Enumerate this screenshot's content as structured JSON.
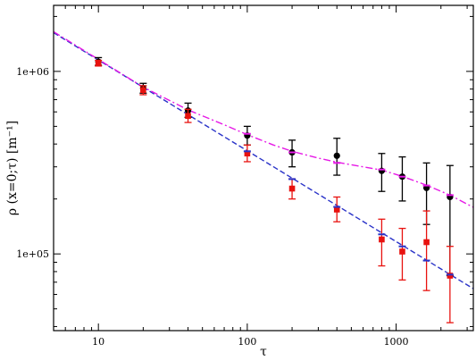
{
  "chart_data": {
    "type": "scatter",
    "xscale": "log",
    "yscale": "log",
    "xlim": [
      5,
      3300
    ],
    "ylim": [
      38000,
      2300000
    ],
    "grid": false,
    "legend": "none",
    "xlabel": "τ",
    "ylabel": "ρ (x=0;τ) [m⁻¹]",
    "x_ticks": [
      {
        "value": 10,
        "label": "10"
      },
      {
        "value": 100,
        "label": "100"
      },
      {
        "value": 1000,
        "label": "1000"
      }
    ],
    "y_ticks": [
      {
        "value": 100000,
        "label": "1e+05"
      },
      {
        "value": 1000000,
        "label": "1e+06"
      }
    ],
    "series": [
      {
        "marker": "circle",
        "color": "#000000",
        "points": [
          {
            "x": 10,
            "y": 1130000,
            "lo": 1080000,
            "hi": 1190000
          },
          {
            "x": 20,
            "y": 810000,
            "lo": 760000,
            "hi": 860000
          },
          {
            "x": 40,
            "y": 610000,
            "lo": 560000,
            "hi": 670000
          },
          {
            "x": 100,
            "y": 445000,
            "lo": 395000,
            "hi": 500000
          },
          {
            "x": 200,
            "y": 360000,
            "lo": 300000,
            "hi": 420000
          },
          {
            "x": 400,
            "y": 345000,
            "lo": 270000,
            "hi": 430000
          },
          {
            "x": 800,
            "y": 285000,
            "lo": 220000,
            "hi": 355000
          },
          {
            "x": 1100,
            "y": 265000,
            "lo": 195000,
            "hi": 340000
          },
          {
            "x": 1600,
            "y": 230000,
            "lo": 145000,
            "hi": 315000
          },
          {
            "x": 2300,
            "y": 205000,
            "lo": 76000,
            "hi": 305000
          }
        ]
      },
      {
        "marker": "square",
        "color": "#e8120f",
        "points": [
          {
            "x": 10,
            "y": 1110000,
            "lo": 1070000,
            "hi": 1150000
          },
          {
            "x": 20,
            "y": 790000,
            "lo": 745000,
            "hi": 835000
          },
          {
            "x": 40,
            "y": 570000,
            "lo": 525000,
            "hi": 620000
          },
          {
            "x": 100,
            "y": 355000,
            "lo": 320000,
            "hi": 395000
          },
          {
            "x": 200,
            "y": 228000,
            "lo": 200000,
            "hi": 258000
          },
          {
            "x": 400,
            "y": 175000,
            "lo": 150000,
            "hi": 205000
          },
          {
            "x": 800,
            "y": 120000,
            "lo": 86000,
            "hi": 155000
          },
          {
            "x": 1100,
            "y": 103000,
            "lo": 72000,
            "hi": 138000
          },
          {
            "x": 1600,
            "y": 116000,
            "lo": 63000,
            "hi": 172000
          },
          {
            "x": 2300,
            "y": 76000,
            "lo": 42000,
            "hi": 110000
          }
        ]
      },
      {
        "marker": "dash",
        "color": "#2a33c8",
        "points": [
          {
            "x": 100,
            "y": 365000
          },
          {
            "x": 200,
            "y": 257000
          },
          {
            "x": 400,
            "y": 181000
          },
          {
            "x": 800,
            "y": 128000
          },
          {
            "x": 1100,
            "y": 110000
          },
          {
            "x": 1600,
            "y": 92000
          },
          {
            "x": 2300,
            "y": 77000
          }
        ]
      },
      {
        "marker": "dash",
        "color": "#e619e6",
        "points": [
          {
            "x": 100,
            "y": 455000
          },
          {
            "x": 200,
            "y": 360000
          },
          {
            "x": 400,
            "y": 315000
          },
          {
            "x": 800,
            "y": 290000
          },
          {
            "x": 1100,
            "y": 265000
          },
          {
            "x": 1600,
            "y": 237000
          },
          {
            "x": 2300,
            "y": 210000
          }
        ]
      }
    ],
    "fits": [
      {
        "style": "dashed",
        "color": "#2a33c8",
        "points": [
          {
            "x": 5,
            "y": 1630000
          },
          {
            "x": 3300,
            "y": 64500
          }
        ]
      },
      {
        "style": "dash-dot",
        "color": "#e619e6",
        "points": [
          {
            "x": 5,
            "y": 1650000
          },
          {
            "x": 20,
            "y": 820000
          },
          {
            "x": 40,
            "y": 615000
          },
          {
            "x": 70,
            "y": 510000
          },
          {
            "x": 100,
            "y": 450000
          },
          {
            "x": 150,
            "y": 395000
          },
          {
            "x": 200,
            "y": 365000
          },
          {
            "x": 300,
            "y": 335000
          },
          {
            "x": 400,
            "y": 318000
          },
          {
            "x": 600,
            "y": 300000
          },
          {
            "x": 800,
            "y": 288000
          },
          {
            "x": 1100,
            "y": 266000
          },
          {
            "x": 1600,
            "y": 238000
          },
          {
            "x": 2300,
            "y": 210000
          },
          {
            "x": 3300,
            "y": 180000
          }
        ]
      }
    ]
  }
}
